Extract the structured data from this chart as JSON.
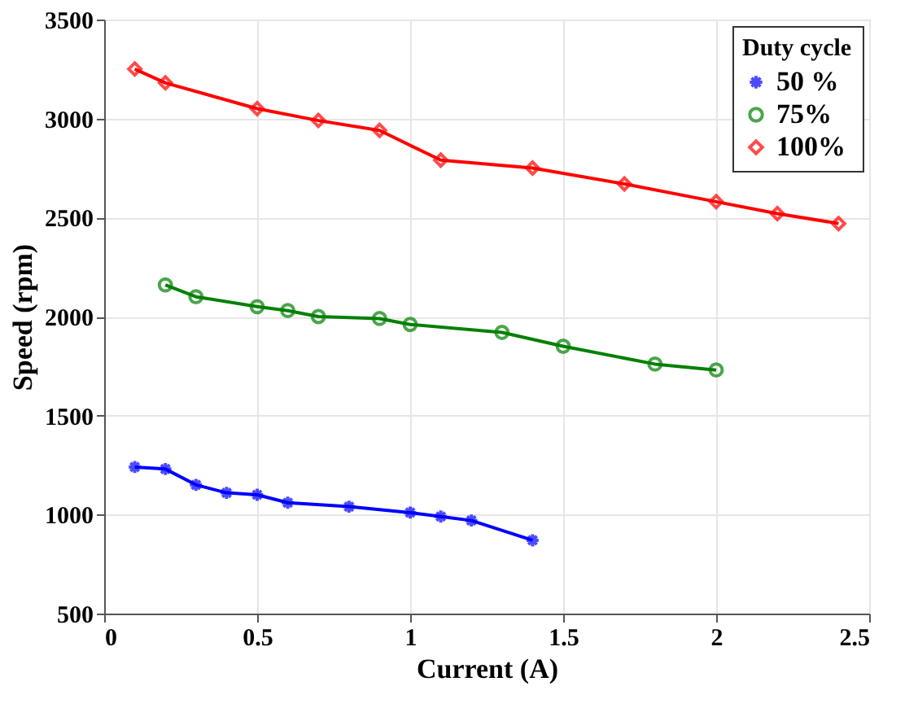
{
  "chart_data": {
    "type": "line",
    "xlabel": "Current (A)",
    "ylabel": "Speed (rpm)",
    "legend_title": "Duty cycle",
    "xlim": [
      0,
      2.5
    ],
    "xticks": [
      0,
      0.5,
      1,
      1.5,
      2,
      2.5
    ],
    "ylim": [
      500,
      3500
    ],
    "yticks": [
      500,
      1000,
      1500,
      2000,
      2500,
      3000,
      3500
    ],
    "grid": true,
    "legend": "top right",
    "line_style": "solid",
    "series": [
      {
        "name": "50 %",
        "color": "#0000ff",
        "marker": "cross",
        "x": [
          0.1,
          0.2,
          0.3,
          0.4,
          0.5,
          0.6,
          0.8,
          1.0,
          1.1,
          1.2,
          1.4
        ],
        "values": [
          1240,
          1230,
          1150,
          1110,
          1100,
          1060,
          1040,
          1010,
          990,
          970,
          870
        ]
      },
      {
        "name": "75%",
        "color": "#008000",
        "marker": "circle",
        "x": [
          0.2,
          0.3,
          0.5,
          0.6,
          0.7,
          0.9,
          1.0,
          1.3,
          1.5,
          1.8,
          2.0
        ],
        "values": [
          2160,
          2100,
          2050,
          2030,
          2000,
          1990,
          1960,
          1920,
          1850,
          1760,
          1730
        ]
      },
      {
        "name": "100%",
        "color": "#ff0000",
        "marker": "diamond",
        "x": [
          0.1,
          0.2,
          0.5,
          0.7,
          0.9,
          1.1,
          1.4,
          1.7,
          2.0,
          2.2,
          2.4
        ],
        "values": [
          3250,
          3180,
          3050,
          2990,
          2940,
          2790,
          2750,
          2670,
          2580,
          2520,
          2470
        ]
      }
    ]
  }
}
